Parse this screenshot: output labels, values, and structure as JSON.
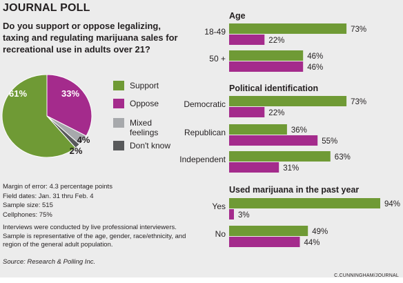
{
  "header": {
    "title": "JOURNAL POLL",
    "question": "Do you support or oppose legalizing, taxing and regulating marijuana sales for recreational use in adults over 21?"
  },
  "legend": {
    "support": "Support",
    "oppose": "Oppose",
    "mixed": "Mixed feelings",
    "dont_know": "Don't know"
  },
  "colors": {
    "support": "#6f9a35",
    "oppose": "#a42b8c",
    "mixed": "#a7a9ac",
    "dont_know": "#58595b"
  },
  "methodology": {
    "margin": "Margin of error: 4.3 percentage points",
    "dates": "Field dates: Jan. 31 thru Feb. 4",
    "sample": "Sample size: 515",
    "cellphones": "Cellphones: 75%"
  },
  "note": "Interviews were conducted by live professional interviewers. Sample is representative of the age, gender, race/ethnicity, and region of the general adult population.",
  "source": "Source: Research & Polling Inc.",
  "credit": "C.CUNNINGHAM/JOURNAL",
  "chart_data": [
    {
      "type": "pie",
      "categories": [
        "Support",
        "Oppose",
        "Mixed feelings",
        "Don't know"
      ],
      "values": [
        61,
        33,
        4,
        2
      ],
      "labels": [
        "61%",
        "33%",
        "4%",
        "2%"
      ]
    },
    {
      "type": "bar",
      "orientation": "horizontal",
      "series": [
        {
          "name": "Support"
        },
        {
          "name": "Oppose"
        }
      ],
      "groups": [
        {
          "title": "Age",
          "rows": [
            {
              "label": "18-49",
              "support": 73,
              "oppose": 22
            },
            {
              "label": "50 +",
              "support": 46,
              "oppose": 46
            }
          ]
        },
        {
          "title": "Political identification",
          "rows": [
            {
              "label": "Democratic",
              "support": 73,
              "oppose": 22
            },
            {
              "label": "Republican",
              "support": 36,
              "oppose": 55
            },
            {
              "label": "Independent",
              "support": 63,
              "oppose": 31
            }
          ]
        },
        {
          "title": "Used marijuana in the past year",
          "rows": [
            {
              "label": "Yes",
              "support": 94,
              "oppose": 3
            },
            {
              "label": "No",
              "support": 49,
              "oppose": 44
            }
          ]
        }
      ]
    }
  ]
}
